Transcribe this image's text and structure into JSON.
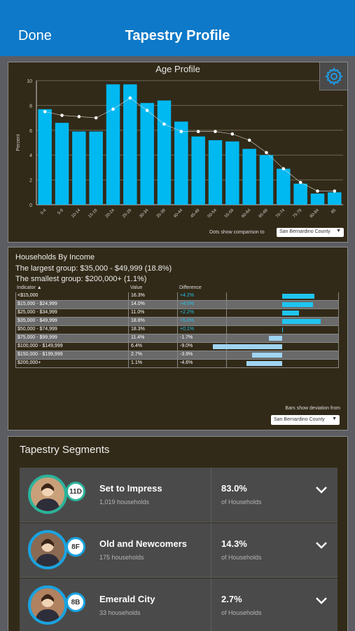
{
  "nav": {
    "done_label": "Done",
    "title": "Tapestry Profile"
  },
  "age_profile": {
    "title": "Age Profile",
    "comparison_label": "Dots show comparison to",
    "comparison_value": "San Bernardino County"
  },
  "chart_data": {
    "type": "bar",
    "title": "Age Profile",
    "ylabel": "Percent",
    "xlabel": "",
    "ylim": [
      0,
      10
    ],
    "yticks": [
      0,
      2,
      4,
      6,
      8,
      10
    ],
    "grid": true,
    "categories": [
      "0-4",
      "5-9",
      "10-14",
      "15-19",
      "20-24",
      "25-29",
      "30-34",
      "35-39",
      "40-44",
      "45-49",
      "50-54",
      "55-59",
      "60-64",
      "65-69",
      "70-74",
      "75-79",
      "80-84",
      "85"
    ],
    "series": [
      {
        "values": [
          7.7,
          6.6,
          5.9,
          5.9,
          9.7,
          9.7,
          8.2,
          8.4,
          6.7,
          5.5,
          5.2,
          5.1,
          4.5,
          4.0,
          2.9,
          1.7,
          0.9,
          1.0
        ]
      },
      {
        "style": "dots",
        "values": [
          7.5,
          7.2,
          7.1,
          7.0,
          7.7,
          8.6,
          7.6,
          6.5,
          5.9,
          5.9,
          5.9,
          5.7,
          5.2,
          4.2,
          2.9,
          1.8,
          1.1,
          1.1
        ]
      }
    ],
    "colors": {
      "bars": "#00b9f1",
      "dots": "#ffffff",
      "grid": "#6b6656",
      "axis": "#cfcfcf"
    }
  },
  "income": {
    "title": "Households By Income",
    "largest": "The largest group: $35,000 - $49,999 (18.8%)",
    "smallest": "The smallest group: $200,000+ (1.1%)",
    "headers": {
      "indicator": "Indicator ▲",
      "value": "Value",
      "difference": "Difference"
    },
    "rows": [
      {
        "indicator": "<$15,000",
        "value": "16.3%",
        "difference": "+4.2%",
        "deviation": 4.2
      },
      {
        "indicator": "$15,000 - $24,999",
        "value": "14.0%",
        "difference": "+4.0%",
        "deviation": 4.0
      },
      {
        "indicator": "$25,000 - $34,999",
        "value": "11.0%",
        "difference": "+2.2%",
        "deviation": 2.2
      },
      {
        "indicator": "$35,000 - $49,999",
        "value": "18.8%",
        "difference": "+5.0%",
        "deviation": 5.0
      },
      {
        "indicator": "$50,000 - $74,999",
        "value": "18.3%",
        "difference": "+0.1%",
        "deviation": 0.1
      },
      {
        "indicator": "$75,000 - $99,999",
        "value": "11.4%",
        "difference": "-1.7%",
        "deviation": -1.7
      },
      {
        "indicator": "$100,000 - $149,999",
        "value": "6.4%",
        "difference": "-9.0%",
        "deviation": -9.0
      },
      {
        "indicator": "$150,000 - $199,999",
        "value": "2.7%",
        "difference": "-3.9%",
        "deviation": -3.9
      },
      {
        "indicator": "$200,000+",
        "value": "1.1%",
        "difference": "-4.6%",
        "deviation": -4.6
      }
    ],
    "deviation_label": "Bars show deviation from",
    "deviation_value": "San Bernardino County",
    "colors": {
      "positive": "#1fc4f0",
      "negative": "#9fd4f2"
    }
  },
  "segments": {
    "title": "Tapestry Segments",
    "items": [
      {
        "code": "11D",
        "name": "Set to Impress",
        "households": "1,019 households",
        "percent": "83.0%",
        "of_label": "of Households",
        "color": "#2bb39a"
      },
      {
        "code": "8F",
        "name": "Old and Newcomers",
        "households": "175 households",
        "percent": "14.3%",
        "of_label": "of Households",
        "color": "#1aa3e0"
      },
      {
        "code": "8B",
        "name": "Emerald City",
        "households": "33 households",
        "percent": "2.7%",
        "of_label": "of Households",
        "color": "#1aa3e0"
      }
    ]
  }
}
